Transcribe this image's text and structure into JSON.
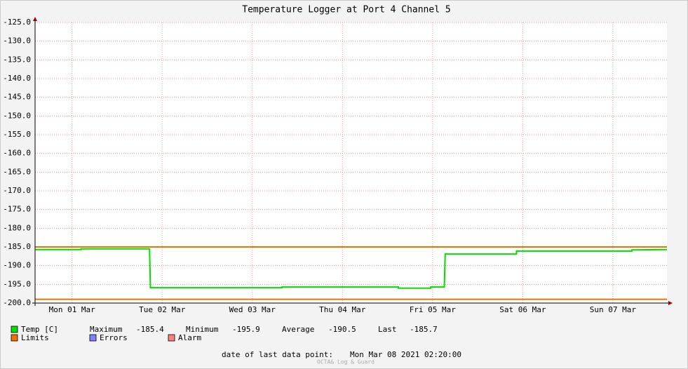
{
  "chart_data": {
    "type": "line",
    "title": "Temperature Logger at Port 4 Channel 5",
    "xlim": [
      0.09,
      7.1
    ],
    "xticks": [
      {
        "value": 0.5,
        "label": "Mon 01 Mar"
      },
      {
        "value": 1.5,
        "label": "Tue 02 Mar"
      },
      {
        "value": 2.5,
        "label": "Wed 03 Mar"
      },
      {
        "value": 3.5,
        "label": "Thu 04 Mar"
      },
      {
        "value": 4.5,
        "label": "Fri 05 Mar"
      },
      {
        "value": 5.5,
        "label": "Sat 06 Mar"
      },
      {
        "value": 6.5,
        "label": "Sun 07 Mar"
      }
    ],
    "ylim": [
      -200,
      -125
    ],
    "yticks": [
      {
        "value": -125,
        "label": "-125.0"
      },
      {
        "value": -130,
        "label": "-130.0"
      },
      {
        "value": -135,
        "label": "-135.0"
      },
      {
        "value": -140,
        "label": "-140.0"
      },
      {
        "value": -145,
        "label": "-145.0"
      },
      {
        "value": -150,
        "label": "-150.0"
      },
      {
        "value": -155,
        "label": "-155.0"
      },
      {
        "value": -160,
        "label": "-160.0"
      },
      {
        "value": -165,
        "label": "-165.0"
      },
      {
        "value": -170,
        "label": "-170.0"
      },
      {
        "value": -175,
        "label": "-175.0"
      },
      {
        "value": -180,
        "label": "-180.0"
      },
      {
        "value": -185,
        "label": "-185.0"
      },
      {
        "value": -190,
        "label": "-190.0"
      },
      {
        "value": -195,
        "label": "-195.0"
      },
      {
        "value": -200,
        "label": "-200.0"
      }
    ],
    "grid": true,
    "series": [
      {
        "name": "Temp [C]",
        "color": "#00e000",
        "x": [
          0.09,
          0.6,
          0.6,
          1.36,
          1.37,
          2.83,
          2.83,
          4.12,
          4.12,
          4.48,
          4.48,
          4.63,
          4.64,
          5.43,
          5.43,
          6.71,
          6.71,
          7.1
        ],
        "values": [
          -185.7,
          -185.7,
          -185.5,
          -185.5,
          -195.9,
          -195.9,
          -195.7,
          -195.7,
          -196.0,
          -196.0,
          -195.7,
          -195.7,
          -186.9,
          -186.9,
          -186.1,
          -186.1,
          -185.8,
          -185.7
        ]
      }
    ],
    "limits": {
      "name": "Limits",
      "color": "#f07000",
      "values": [
        -185,
        -199
      ]
    },
    "legend_extra": [
      {
        "name": "Errors",
        "color": "#7f7fff"
      },
      {
        "name": "Alarm",
        "color": "#ff7f7f"
      }
    ],
    "stats": {
      "labels": [
        "Maximum",
        "Minimum",
        "Average",
        "Last"
      ],
      "values": [
        -185.4,
        -195.9,
        -190.5,
        -185.7
      ]
    },
    "footer_label": "date of last data point:",
    "footer_value": "Mon Mar 08 2021 02:20:00",
    "watermark": "OCTA& Log & Guard"
  }
}
